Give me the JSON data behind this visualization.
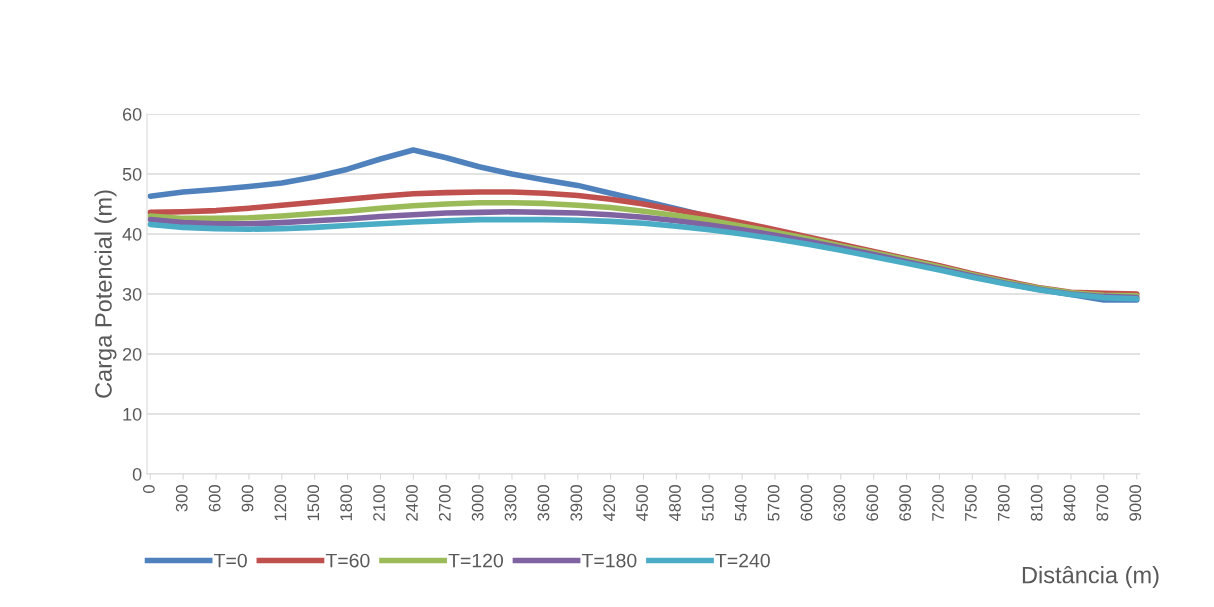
{
  "chart_data": {
    "type": "line",
    "xlabel": "Distância (m)",
    "ylabel": "Carga Potencial (m)",
    "categories": [
      "0",
      "300",
      "600",
      "900",
      "1200",
      "1500",
      "1800",
      "2100",
      "2400",
      "2700",
      "3000",
      "3300",
      "3600",
      "3900",
      "4200",
      "4500",
      "4800",
      "5100",
      "5400",
      "5700",
      "6000",
      "6300",
      "6600",
      "6900",
      "7200",
      "7500",
      "7800",
      "8100",
      "8400",
      "8700",
      "9000"
    ],
    "ylim": [
      0,
      60
    ],
    "yticks": [
      0,
      10,
      20,
      30,
      40,
      50,
      60
    ],
    "grid": "y",
    "legend": "bottom",
    "marker": "none",
    "line_style": "solid",
    "series": [
      {
        "name": "T=0",
        "color": "#4f81bd",
        "values": [
          46.3,
          47.0,
          47.4,
          47.9,
          48.5,
          49.5,
          50.8,
          52.5,
          54.0,
          52.7,
          51.2,
          50.0,
          49.0,
          48.1,
          46.8,
          45.5,
          44.2,
          42.9,
          41.6,
          40.3,
          39.0,
          37.8,
          36.6,
          35.4,
          34.2,
          33.0,
          31.9,
          30.8,
          29.9,
          29.0,
          29.0
        ]
      },
      {
        "name": "T=60",
        "color": "#c0504d",
        "values": [
          43.6,
          43.7,
          43.9,
          44.3,
          44.8,
          45.3,
          45.8,
          46.3,
          46.7,
          46.9,
          47.0,
          47.0,
          46.8,
          46.4,
          45.8,
          45.0,
          44.0,
          43.0,
          41.9,
          40.7,
          39.5,
          38.3,
          37.1,
          35.9,
          34.7,
          33.4,
          32.2,
          31.1,
          30.3,
          30.1,
          30.0
        ]
      },
      {
        "name": "T=120",
        "color": "#9bbb59",
        "values": [
          43.0,
          42.6,
          42.6,
          42.7,
          43.0,
          43.4,
          43.8,
          44.3,
          44.7,
          45.0,
          45.2,
          45.2,
          45.1,
          44.8,
          44.4,
          43.8,
          43.1,
          42.3,
          41.3,
          40.3,
          39.2,
          38.0,
          36.9,
          35.7,
          34.5,
          33.2,
          32.0,
          31.0,
          30.2,
          29.8,
          29.7
        ]
      },
      {
        "name": "T=180",
        "color": "#8064a2",
        "values": [
          42.4,
          41.9,
          41.7,
          41.7,
          41.9,
          42.2,
          42.5,
          42.9,
          43.2,
          43.5,
          43.6,
          43.7,
          43.6,
          43.5,
          43.2,
          42.8,
          42.2,
          41.5,
          40.7,
          39.8,
          38.8,
          37.7,
          36.6,
          35.4,
          34.2,
          33.0,
          31.8,
          30.8,
          30.0,
          29.6,
          29.4
        ]
      },
      {
        "name": "T=240",
        "color": "#4bacc6",
        "values": [
          41.6,
          41.1,
          40.9,
          40.8,
          40.9,
          41.1,
          41.4,
          41.7,
          42.0,
          42.2,
          42.4,
          42.4,
          42.4,
          42.3,
          42.1,
          41.8,
          41.3,
          40.7,
          40.0,
          39.2,
          38.3,
          37.3,
          36.2,
          35.1,
          34.0,
          32.8,
          31.7,
          30.7,
          29.9,
          29.4,
          29.2
        ]
      }
    ]
  }
}
